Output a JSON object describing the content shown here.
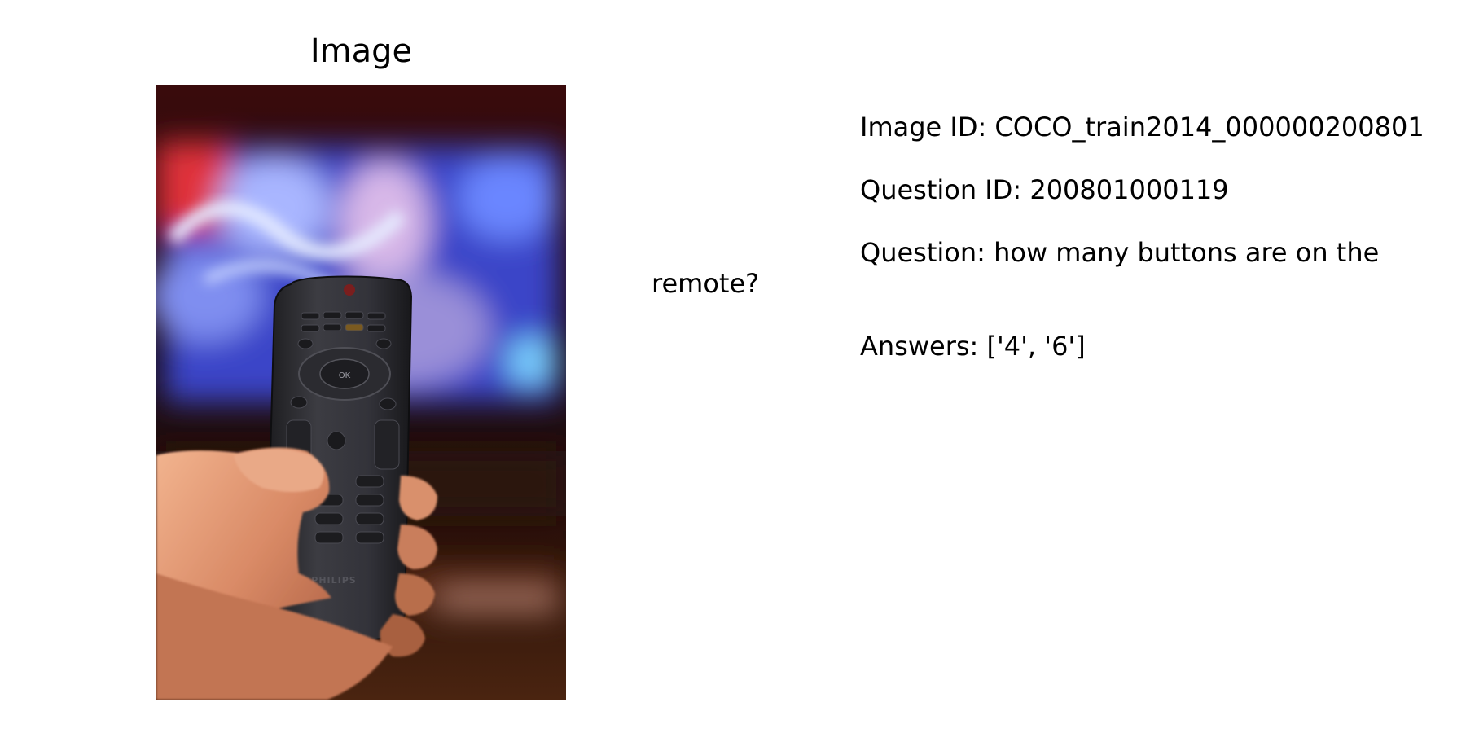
{
  "panel": {
    "title": "Image"
  },
  "photo": {
    "description_icon": "tv-remote-photo",
    "remote_ok_label": "OK",
    "remote_brand": "PHILIPS"
  },
  "info": {
    "image_id_line": "Image ID: COCO_train2014_000000200801",
    "question_id_line": "Question ID: 200801000119",
    "question_line_1": "Question: how many buttons are on the",
    "question_line_2": "remote?",
    "answers_line": "Answers: ['4', '6']"
  }
}
